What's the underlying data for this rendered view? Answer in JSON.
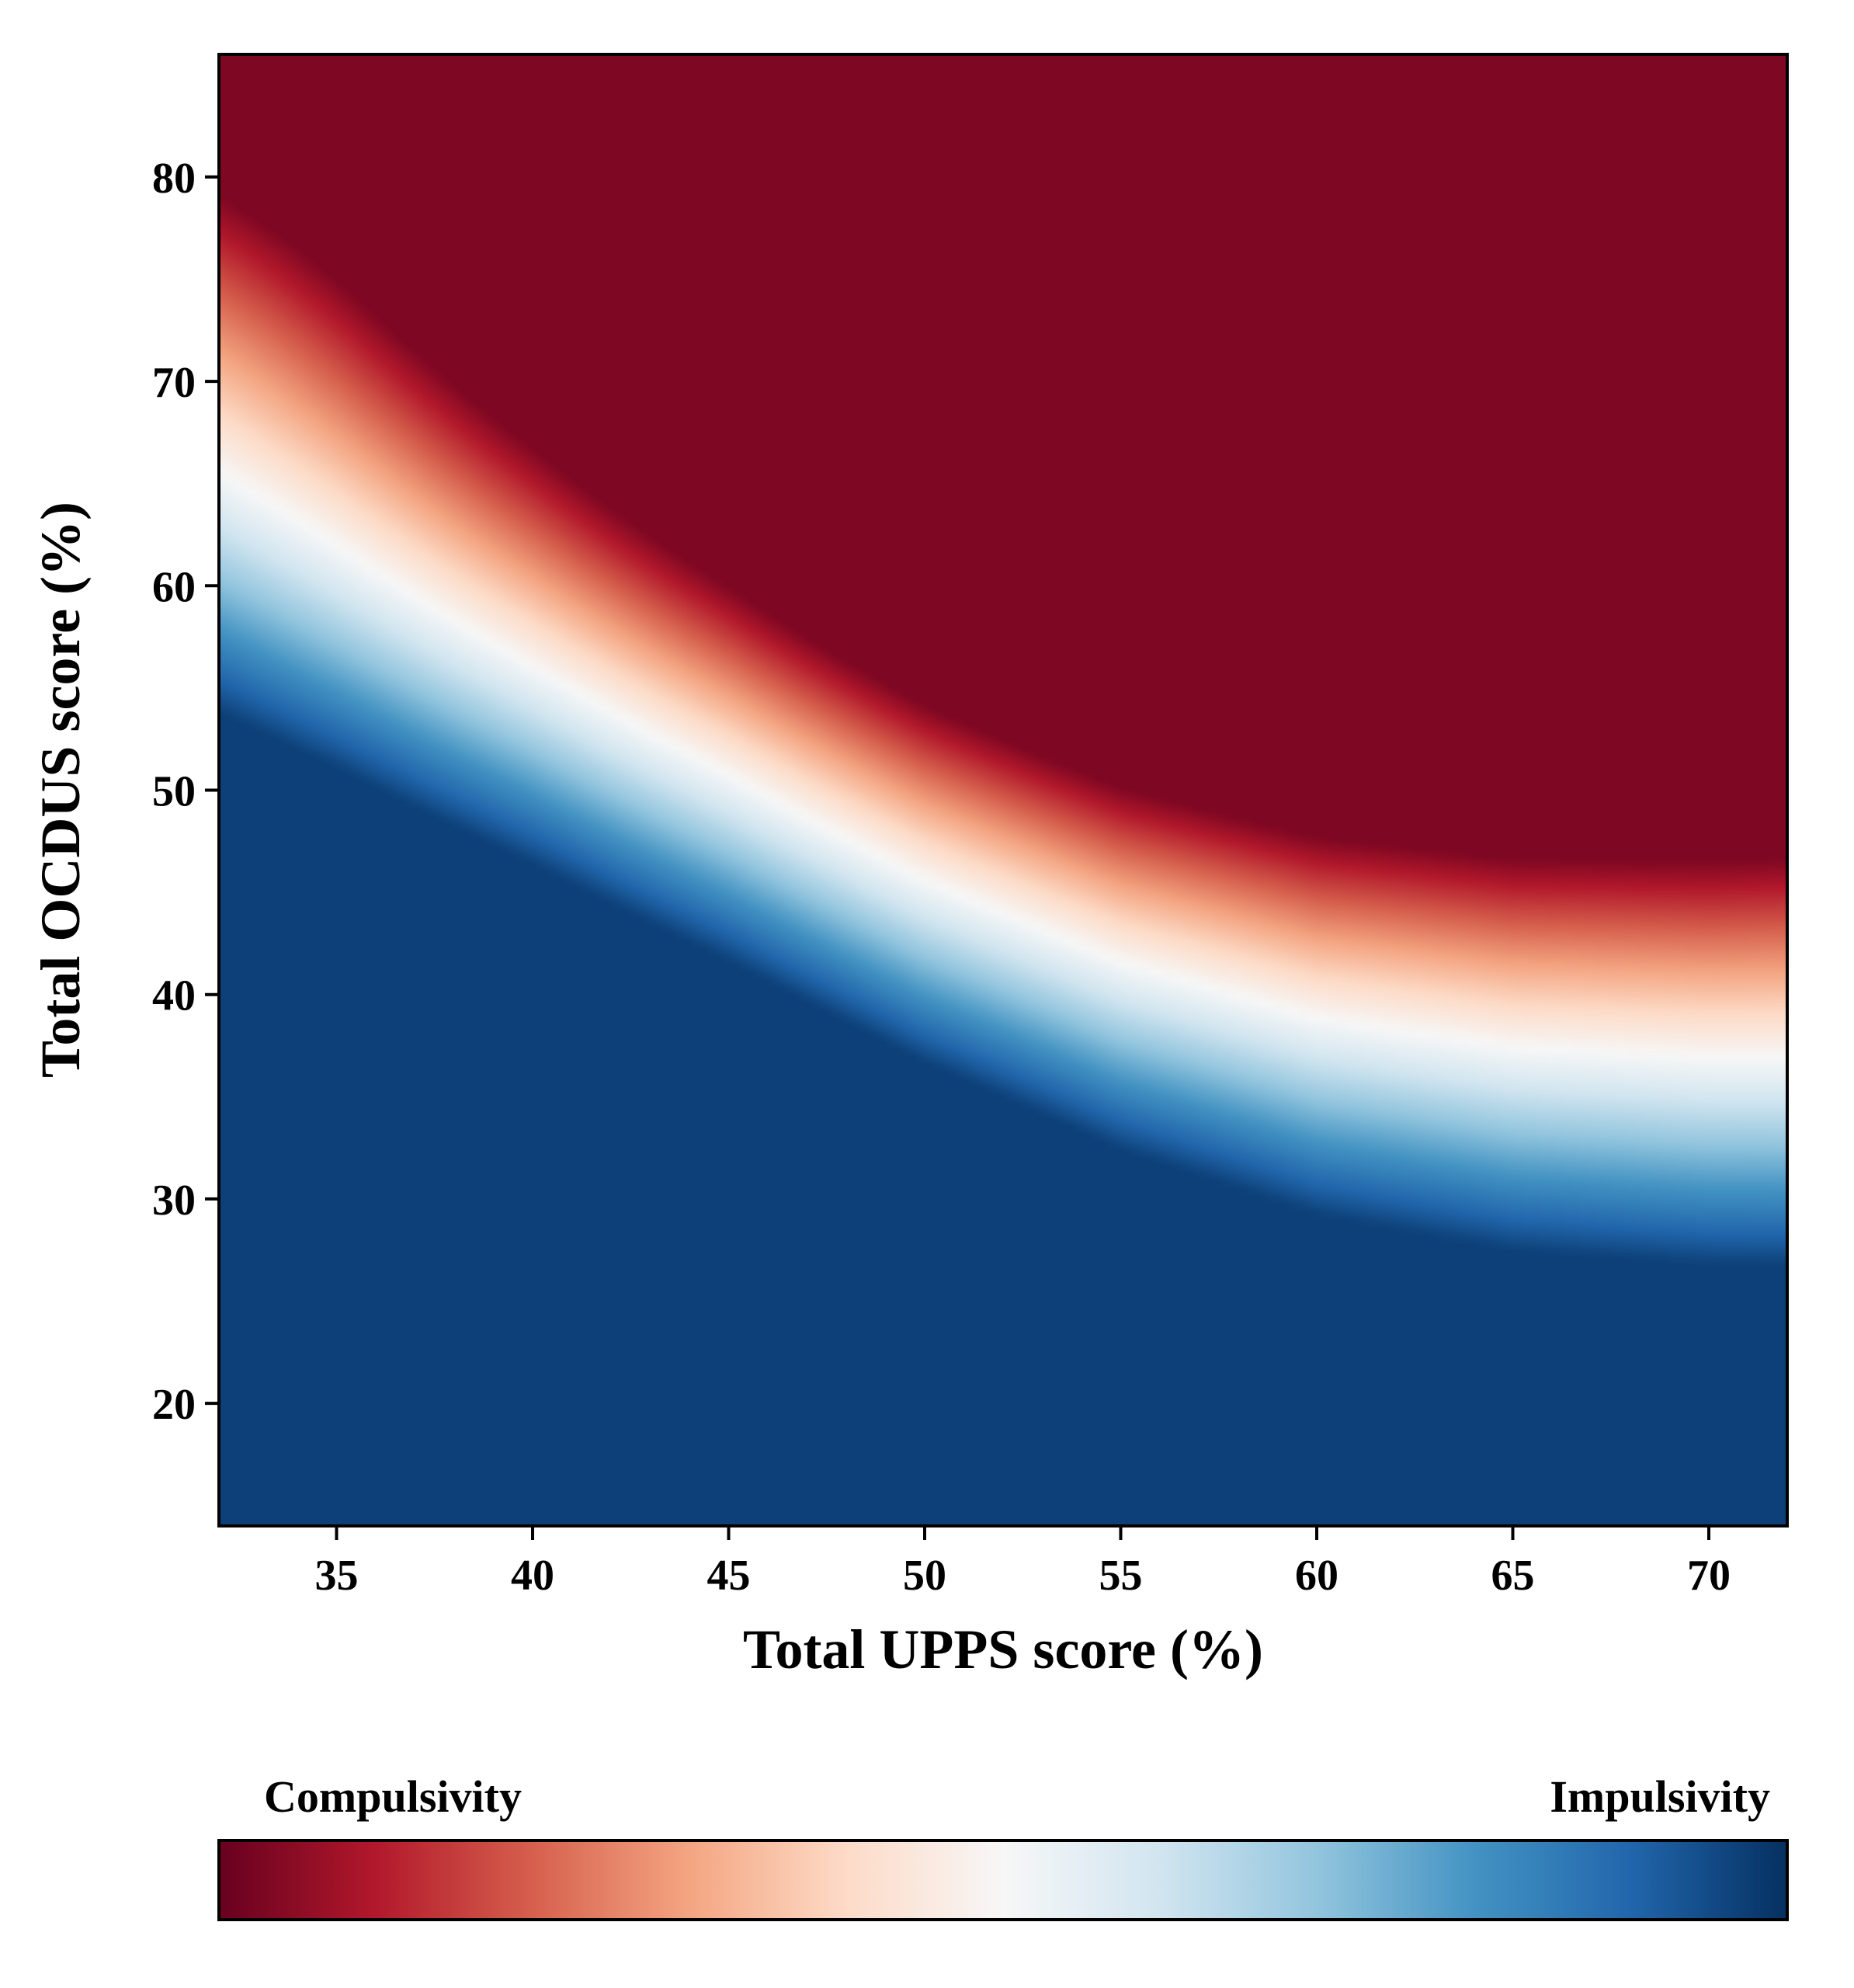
{
  "chart_data": {
    "type": "heatmap",
    "title": "",
    "xlabel": "Total UPPS score (%)",
    "ylabel": "Total OCDUS score (%)",
    "xlim": [
      32,
      72
    ],
    "ylim": [
      14,
      86
    ],
    "x_ticks": [
      35,
      40,
      45,
      50,
      55,
      60,
      65,
      70
    ],
    "y_ticks": [
      20,
      30,
      40,
      50,
      60,
      70,
      80
    ],
    "colormap": "RdBu",
    "colormap_stops": [
      "#67001f",
      "#b2182b",
      "#d6604d",
      "#f4a582",
      "#fddbc7",
      "#f7f7f7",
      "#d1e5f0",
      "#92c5de",
      "#4393c3",
      "#2166ac",
      "#053061"
    ],
    "grid": false,
    "boundary_curve": {
      "description_values": "UPPS (x) vs OCDUS (y) where the surface passes through the colormap midpoint",
      "x": [
        32,
        35,
        40,
        45,
        50,
        55,
        60,
        65,
        70,
        72
      ],
      "y": [
        64,
        61.5,
        57,
        52,
        46.5,
        42,
        39,
        37.5,
        37,
        37
      ]
    },
    "colorbar": {
      "orientation": "horizontal",
      "left_label": "Compulsivity",
      "right_label": "Impulsivity"
    }
  }
}
